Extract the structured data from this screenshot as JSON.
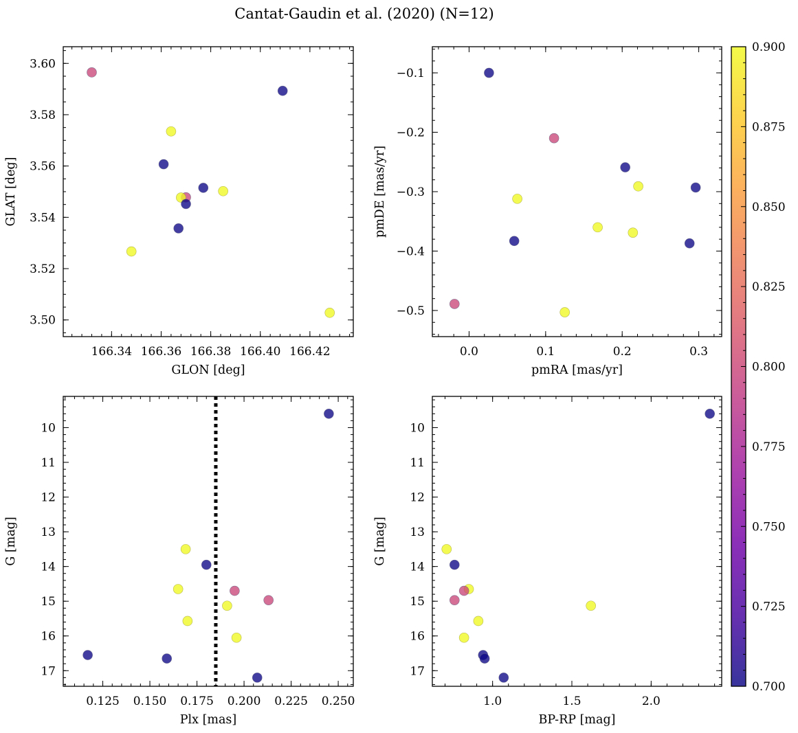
{
  "figure_title": "Cantat-Gaudin et al. (2020) (N=12)",
  "chart_data": [
    {
      "id": "sky",
      "type": "scatter",
      "xlabel": "GLON [deg]",
      "ylabel": "GLAT [deg]",
      "xlim": [
        166.3205,
        166.4375
      ],
      "ylim": [
        3.4935,
        3.6065
      ],
      "xticks": [
        "166.34",
        "166.36",
        "166.38",
        "166.40",
        "166.42"
      ],
      "yticks": [
        "3.50",
        "3.52",
        "3.54",
        "3.56",
        "3.58",
        "3.60"
      ],
      "points": [
        {
          "x": 166.332,
          "y": 3.5965,
          "c": 0.8
        },
        {
          "x": 166.409,
          "y": 3.5893,
          "c": 0.7
        },
        {
          "x": 166.364,
          "y": 3.5735,
          "c": 0.9
        },
        {
          "x": 166.361,
          "y": 3.5607,
          "c": 0.7
        },
        {
          "x": 166.377,
          "y": 3.5515,
          "c": 0.7
        },
        {
          "x": 166.385,
          "y": 3.5502,
          "c": 0.9
        },
        {
          "x": 166.37,
          "y": 3.5478,
          "c": 0.8
        },
        {
          "x": 166.368,
          "y": 3.5477,
          "c": 0.9
        },
        {
          "x": 166.37,
          "y": 3.5452,
          "c": 0.7
        },
        {
          "x": 166.367,
          "y": 3.5357,
          "c": 0.7
        },
        {
          "x": 166.348,
          "y": 3.5267,
          "c": 0.9
        },
        {
          "x": 166.428,
          "y": 3.5028,
          "c": 0.9
        }
      ]
    },
    {
      "id": "pm",
      "type": "scatter",
      "xlabel": "pmRA [mas/yr]",
      "ylabel": "pmDE [mas/yr]",
      "xlim": [
        -0.048,
        0.33
      ],
      "ylim": [
        -0.544,
        -0.056
      ],
      "xticks": [
        "0.0",
        "0.1",
        "0.2",
        "0.3"
      ],
      "yticks": [
        "−0.1",
        "−0.2",
        "−0.3",
        "−0.4",
        "−0.5"
      ],
      "points": [
        {
          "x": 0.026,
          "y": -0.1,
          "c": 0.7
        },
        {
          "x": 0.111,
          "y": -0.21,
          "c": 0.8
        },
        {
          "x": 0.204,
          "y": -0.259,
          "c": 0.7
        },
        {
          "x": 0.221,
          "y": -0.291,
          "c": 0.9
        },
        {
          "x": 0.296,
          "y": -0.293,
          "c": 0.7
        },
        {
          "x": 0.063,
          "y": -0.312,
          "c": 0.9
        },
        {
          "x": 0.168,
          "y": -0.36,
          "c": 0.9
        },
        {
          "x": 0.214,
          "y": -0.369,
          "c": 0.9
        },
        {
          "x": 0.059,
          "y": -0.383,
          "c": 0.7
        },
        {
          "x": 0.288,
          "y": -0.387,
          "c": 0.7
        },
        {
          "x": -0.019,
          "y": -0.489,
          "c": 0.8
        },
        {
          "x": 0.125,
          "y": -0.503,
          "c": 0.9
        }
      ]
    },
    {
      "id": "plx",
      "type": "scatter",
      "xlabel": "Plx [mas]",
      "ylabel": "G [mag]",
      "xlim": [
        0.104,
        0.258
      ],
      "ylim": [
        17.45,
        9.1
      ],
      "xticks": [
        "0.125",
        "0.150",
        "0.175",
        "0.200",
        "0.225",
        "0.250"
      ],
      "yticks": [
        "10",
        "11",
        "12",
        "13",
        "14",
        "15",
        "16",
        "17"
      ],
      "vline": 0.185,
      "points": [
        {
          "x": 0.245,
          "y": 9.6,
          "c": 0.7
        },
        {
          "x": 0.169,
          "y": 13.5,
          "c": 0.9
        },
        {
          "x": 0.18,
          "y": 13.95,
          "c": 0.7
        },
        {
          "x": 0.165,
          "y": 14.65,
          "c": 0.9
        },
        {
          "x": 0.195,
          "y": 14.7,
          "c": 0.8
        },
        {
          "x": 0.213,
          "y": 14.97,
          "c": 0.8
        },
        {
          "x": 0.191,
          "y": 15.13,
          "c": 0.9
        },
        {
          "x": 0.17,
          "y": 15.57,
          "c": 0.9
        },
        {
          "x": 0.196,
          "y": 16.05,
          "c": 0.9
        },
        {
          "x": 0.117,
          "y": 16.55,
          "c": 0.7
        },
        {
          "x": 0.159,
          "y": 16.65,
          "c": 0.7
        },
        {
          "x": 0.207,
          "y": 17.2,
          "c": 0.7
        }
      ]
    },
    {
      "id": "cmd",
      "type": "scatter",
      "xlabel": "BP-RP [mag]",
      "ylabel": "G [mag]",
      "xlim": [
        0.62,
        2.445
      ],
      "ylim": [
        17.45,
        9.1
      ],
      "xticks": [
        "1.0",
        "1.5",
        "2.0"
      ],
      "yticks": [
        "10",
        "11",
        "12",
        "13",
        "14",
        "15",
        "16",
        "17"
      ],
      "points": [
        {
          "x": 2.37,
          "y": 9.6,
          "c": 0.7
        },
        {
          "x": 0.71,
          "y": 13.5,
          "c": 0.9
        },
        {
          "x": 0.76,
          "y": 13.95,
          "c": 0.7
        },
        {
          "x": 0.85,
          "y": 14.65,
          "c": 0.9
        },
        {
          "x": 0.82,
          "y": 14.7,
          "c": 0.8
        },
        {
          "x": 0.76,
          "y": 14.97,
          "c": 0.8
        },
        {
          "x": 1.62,
          "y": 15.13,
          "c": 0.9
        },
        {
          "x": 0.91,
          "y": 15.57,
          "c": 0.9
        },
        {
          "x": 0.82,
          "y": 16.05,
          "c": 0.9
        },
        {
          "x": 0.94,
          "y": 16.55,
          "c": 0.7
        },
        {
          "x": 0.95,
          "y": 16.65,
          "c": 0.7
        },
        {
          "x": 1.07,
          "y": 17.2,
          "c": 0.7
        }
      ]
    }
  ],
  "colorbar": {
    "range": [
      0.7,
      0.9
    ],
    "ticks": [
      "0.700",
      "0.725",
      "0.750",
      "0.775",
      "0.800",
      "0.825",
      "0.850",
      "0.875",
      "0.900"
    ],
    "colormap": [
      "#0d0887",
      "#46039f",
      "#7201a8",
      "#9c179e",
      "#bd3786",
      "#d8576b",
      "#ed7953",
      "#fb9f3a",
      "#fdca26",
      "#f0f921"
    ]
  }
}
